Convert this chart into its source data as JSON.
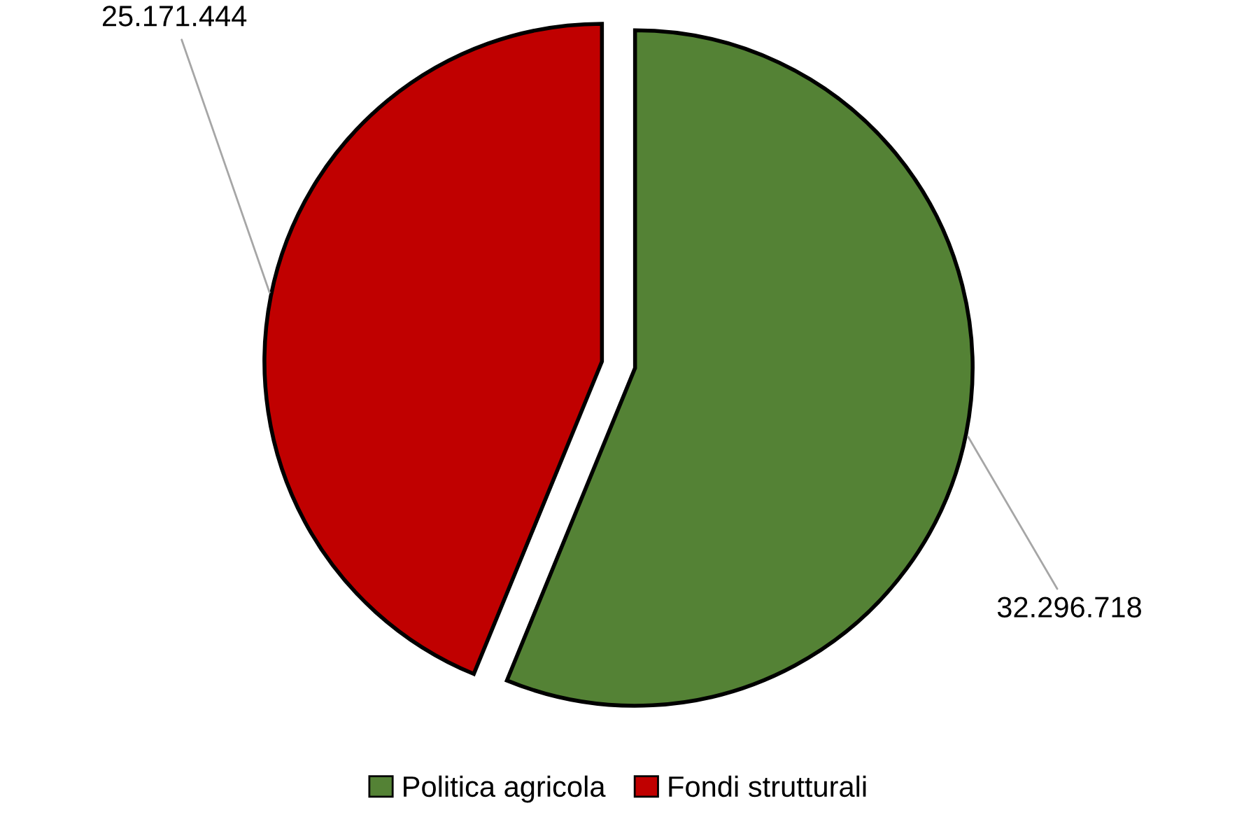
{
  "chart_data": {
    "type": "pie",
    "categories": [
      "Politica agricola",
      "Fondi strutturali"
    ],
    "values": [
      32296718,
      25171444
    ],
    "value_labels": [
      "32.296.718",
      "25.171.444"
    ],
    "colors": [
      "#548235",
      "#c00000"
    ],
    "legend": "bottom"
  }
}
